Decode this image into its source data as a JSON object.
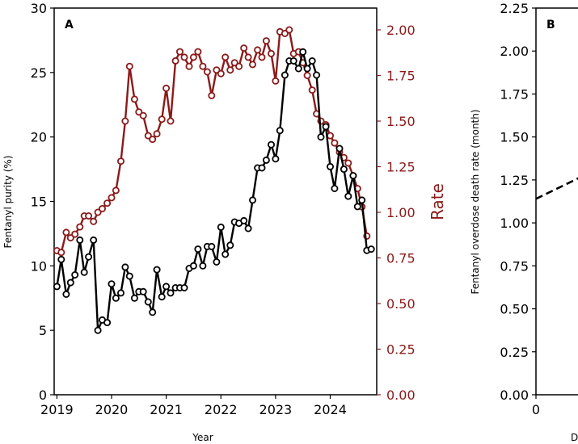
{
  "chart_data": [
    {
      "panel_label": "A",
      "type": "line",
      "xlabel": "Year",
      "ylabel_left": "Fentanyl purity (%)",
      "ylabel_right": "Rate",
      "xlim": [
        2018.95,
        2024.85
      ],
      "ylim_left": [
        0,
        30
      ],
      "ylim_right": [
        0,
        2.0
      ],
      "x_ticks": [
        2019,
        2020,
        2021,
        2022,
        2023,
        2024
      ],
      "y_ticks_left": [
        0,
        5,
        10,
        15,
        20,
        25,
        30
      ],
      "y_ticks_right": [
        "0.00",
        "0.25",
        "0.50",
        "0.75",
        "1.00",
        "1.25",
        "1.50",
        "1.75",
        "2.00"
      ],
      "series": [
        {
          "axis": "right",
          "color": "#8b1a1a",
          "x": [
            2019.0,
            2019.08,
            2019.17,
            2019.25,
            2019.33,
            2019.42,
            2019.5,
            2019.58,
            2019.67,
            2019.75,
            2019.83,
            2019.92,
            2020.0,
            2020.08,
            2020.17,
            2020.25,
            2020.33,
            2020.42,
            2020.5,
            2020.58,
            2020.67,
            2020.75,
            2020.83,
            2020.92,
            2021.0,
            2021.08,
            2021.17,
            2021.25,
            2021.33,
            2021.42,
            2021.5,
            2021.58,
            2021.67,
            2021.75,
            2021.83,
            2021.92,
            2022.0,
            2022.08,
            2022.17,
            2022.25,
            2022.33,
            2022.42,
            2022.5,
            2022.58,
            2022.67,
            2022.75,
            2022.83,
            2022.92,
            2023.0,
            2023.08,
            2023.17,
            2023.25,
            2023.33,
            2023.42,
            2023.5,
            2023.58,
            2023.67,
            2023.75,
            2023.83,
            2023.92,
            2024.0,
            2024.08,
            2024.17,
            2024.25,
            2024.33,
            2024.42,
            2024.5,
            2024.58,
            2024.67
          ],
          "values": [
            0.79,
            0.78,
            0.89,
            0.86,
            0.88,
            0.92,
            0.98,
            0.98,
            0.95,
            1.0,
            1.02,
            1.05,
            1.08,
            1.12,
            1.28,
            1.5,
            1.8,
            1.62,
            1.55,
            1.53,
            1.42,
            1.4,
            1.43,
            1.51,
            1.68,
            1.5,
            1.83,
            1.88,
            1.85,
            1.8,
            1.85,
            1.88,
            1.8,
            1.77,
            1.64,
            1.78,
            1.76,
            1.85,
            1.78,
            1.82,
            1.8,
            1.9,
            1.85,
            1.81,
            1.89,
            1.85,
            1.94,
            1.87,
            1.72,
            1.99,
            1.98,
            2.0,
            1.87,
            1.88,
            1.82,
            1.75,
            1.67,
            1.54,
            1.5,
            1.48,
            1.42,
            1.38,
            1.33,
            1.3,
            1.27,
            1.2,
            1.13,
            1.03,
            0.87
          ]
        },
        {
          "axis": "left",
          "color": "#000000",
          "x": [
            2019.0,
            2019.08,
            2019.17,
            2019.25,
            2019.33,
            2019.42,
            2019.5,
            2019.58,
            2019.67,
            2019.75,
            2019.83,
            2019.92,
            2020.0,
            2020.08,
            2020.17,
            2020.25,
            2020.33,
            2020.42,
            2020.5,
            2020.58,
            2020.67,
            2020.75,
            2020.83,
            2020.92,
            2021.0,
            2021.08,
            2021.17,
            2021.25,
            2021.33,
            2021.42,
            2021.5,
            2021.58,
            2021.67,
            2021.75,
            2021.83,
            2021.92,
            2022.0,
            2022.08,
            2022.17,
            2022.25,
            2022.33,
            2022.42,
            2022.5,
            2022.58,
            2022.67,
            2022.75,
            2022.83,
            2022.92,
            2023.0,
            2023.08,
            2023.17,
            2023.25,
            2023.33,
            2023.42,
            2023.5,
            2023.58,
            2023.67,
            2023.75,
            2023.83,
            2023.92,
            2024.0,
            2024.08,
            2024.17,
            2024.25,
            2024.33,
            2024.42,
            2024.5,
            2024.58,
            2024.67,
            2024.75
          ],
          "values": [
            8.4,
            10.5,
            7.8,
            8.7,
            9.3,
            12.0,
            9.5,
            10.7,
            12.0,
            5.0,
            5.8,
            5.6,
            8.6,
            7.5,
            7.9,
            9.9,
            9.2,
            7.5,
            8.0,
            8.0,
            7.2,
            6.4,
            9.7,
            7.6,
            8.4,
            7.9,
            8.3,
            8.3,
            8.3,
            9.8,
            10.0,
            11.3,
            10.0,
            11.5,
            11.5,
            10.3,
            13.0,
            10.9,
            11.6,
            13.4,
            13.3,
            13.5,
            12.9,
            15.1,
            17.6,
            17.6,
            18.2,
            19.4,
            18.3,
            20.5,
            24.8,
            25.9,
            25.9,
            25.3,
            26.6,
            25.3,
            25.9,
            24.8,
            20.0,
            20.8,
            17.7,
            16.0,
            19.1,
            17.5,
            15.4,
            17.0,
            14.6,
            15.1,
            11.2,
            11.3
          ]
        }
      ]
    },
    {
      "panel_label": "B",
      "type": "line",
      "xlabel": "D",
      "ylabel": "Fentanyl overdose death rate (month)",
      "ylim": [
        0,
        2.25
      ],
      "x_ticks": [
        0
      ],
      "y_ticks": [
        "0.00",
        "0.25",
        "0.50",
        "0.75",
        "1.00",
        "1.25",
        "1.50",
        "1.75",
        "2.00",
        "2.25"
      ],
      "series": [
        {
          "style": "dashed",
          "color": "#000000",
          "x": [
            0,
            0.5
          ],
          "values": [
            1.14,
            1.26
          ]
        }
      ]
    }
  ]
}
